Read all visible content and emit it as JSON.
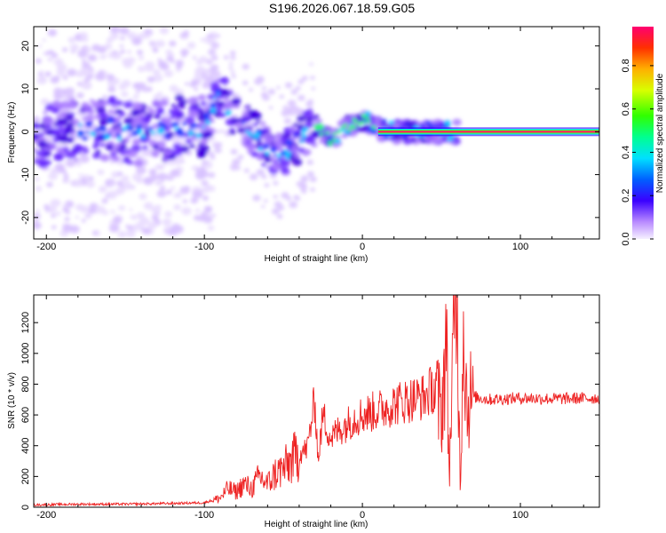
{
  "title": "S196.2026.067.18.59.G05",
  "chart_data": [
    {
      "type": "heatmap",
      "xlabel": "Height of straight line (km)",
      "ylabel": "Frequency (Hz)",
      "xlim": [
        -208,
        150
      ],
      "ylim": [
        -25,
        24.5
      ],
      "xticks": [
        -200,
        -100,
        0,
        100
      ],
      "yticks": [
        -20,
        -10,
        0,
        10,
        20
      ],
      "colorbar": {
        "label": "Normalized spectral amplitude",
        "range": [
          0,
          0.98
        ],
        "ticks": [
          0,
          0.2,
          0.4,
          0.6,
          0.8
        ]
      },
      "ridge": [
        {
          "x": -205,
          "y": -1
        },
        {
          "x": -190,
          "y": 1
        },
        {
          "x": -175,
          "y": 0
        },
        {
          "x": -160,
          "y": 1
        },
        {
          "x": -145,
          "y": -1
        },
        {
          "x": -130,
          "y": 0
        },
        {
          "x": -115,
          "y": 1
        },
        {
          "x": -100,
          "y": 1
        },
        {
          "x": -90,
          "y": 9
        },
        {
          "x": -80,
          "y": 3
        },
        {
          "x": -70,
          "y": 0
        },
        {
          "x": -60,
          "y": -4
        },
        {
          "x": -50,
          "y": -5
        },
        {
          "x": -40,
          "y": -2
        },
        {
          "x": -30,
          "y": 2
        },
        {
          "x": -20,
          "y": -2
        },
        {
          "x": -10,
          "y": 1
        },
        {
          "x": 0,
          "y": 3
        },
        {
          "x": 10,
          "y": 1
        },
        {
          "x": 20,
          "y": 0
        },
        {
          "x": 150,
          "y": 0
        }
      ]
    },
    {
      "type": "line",
      "xlabel": "Height of straight line (km)",
      "ylabel": "SNR (10 * v/v)",
      "xlim": [
        -208,
        150
      ],
      "ylim": [
        0,
        1380
      ],
      "xticks": [
        -200,
        -100,
        0,
        100
      ],
      "yticks": [
        0,
        200,
        400,
        600,
        800,
        1000,
        1200
      ],
      "series": [
        {
          "name": "SNR",
          "color": "#ee2222",
          "x": [
            -208,
            -180,
            -150,
            -120,
            -100,
            -90,
            -85,
            -80,
            -75,
            -70,
            -65,
            -60,
            -55,
            -50,
            -45,
            -40,
            -35,
            -30,
            -28,
            -25,
            -20,
            -15,
            -10,
            -5,
            0,
            10,
            20,
            30,
            40,
            45,
            50,
            53,
            55,
            57,
            60,
            62,
            64,
            66,
            70,
            80,
            100,
            120,
            150
          ],
          "values": [
            15,
            20,
            20,
            25,
            30,
            60,
            120,
            100,
            150,
            120,
            200,
            150,
            220,
            250,
            300,
            350,
            380,
            700,
            300,
            600,
            450,
            500,
            540,
            580,
            600,
            630,
            670,
            700,
            720,
            780,
            600,
            1100,
            200,
            900,
            1350,
            100,
            1300,
            700,
            720,
            700,
            710,
            705,
            710
          ]
        }
      ]
    }
  ]
}
